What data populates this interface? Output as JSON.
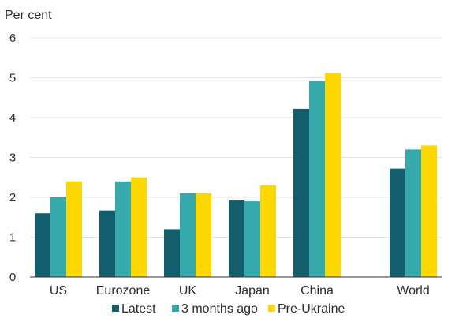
{
  "chart_data": {
    "type": "bar",
    "ylabel": "Per cent",
    "ylim": [
      0,
      6
    ],
    "yticks": [
      0,
      1,
      2,
      3,
      4,
      5,
      6
    ],
    "grid": true,
    "legend_position": "bottom",
    "categories": [
      "US",
      "Eurozone",
      "UK",
      "Japan",
      "China",
      "World"
    ],
    "series": [
      {
        "name": "Latest",
        "color": "#135e6c",
        "values": [
          1.6,
          1.67,
          1.2,
          1.92,
          4.22,
          2.72
        ]
      },
      {
        "name": "3 months ago",
        "color": "#36a9ad",
        "values": [
          2.0,
          2.4,
          2.1,
          1.9,
          4.92,
          3.2
        ]
      },
      {
        "name": "Pre-Ukraine",
        "color": "#fcd800",
        "values": [
          2.4,
          2.5,
          2.1,
          2.3,
          5.12,
          3.3
        ]
      }
    ]
  }
}
